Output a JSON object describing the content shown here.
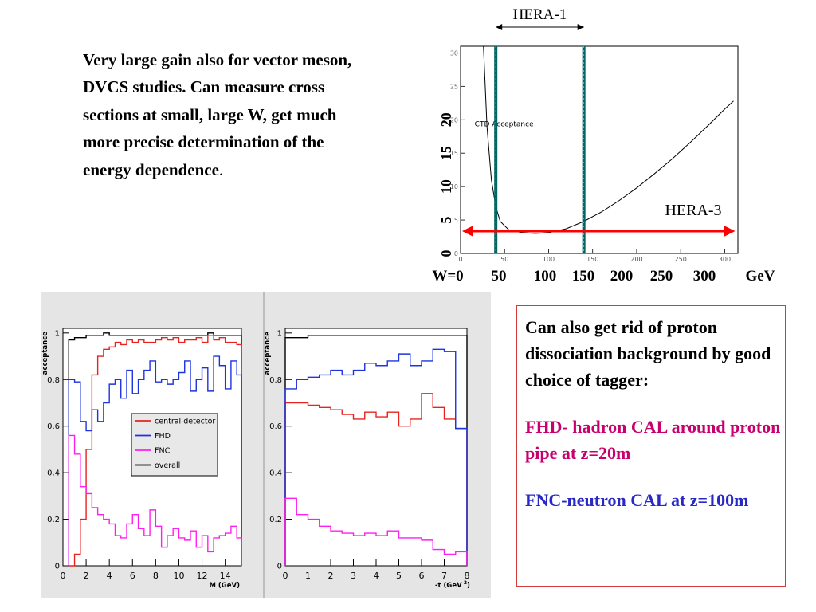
{
  "intro": {
    "main": "Very large gain also for vector meson, DVCS studies.  Can measure cross sections at small, large W, get much more precise determination of the energy dependence",
    "tail": "."
  },
  "side_box": {
    "p1": "Can also get rid of proton dissociation background by good choice of tagger:",
    "p2": "FHD- hadron CAL around proton pipe at z=20m",
    "p3": "FNC-neutron CAL at z=100m"
  },
  "colors": {
    "central_detector": "#e8231f",
    "fhd": "#1c33e0",
    "fnc": "#ff1ef0",
    "overall": "#000000",
    "hera_lines": "#006464",
    "hera3_arrow": "#ff0000",
    "box_border": "#d43b3b",
    "fhd_text": "#c8006e",
    "fnc_text": "#2828c8"
  },
  "chart_data": [
    {
      "type": "line",
      "id": "ctd-acceptance",
      "annotation": "CTD Acceptance",
      "hera1_label": "HERA-1",
      "hera3_label": "HERA-3",
      "ylabel": "",
      "xlim": [
        0,
        315
      ],
      "ylim": [
        0,
        31
      ],
      "x_ticks": [
        0,
        50,
        100,
        150,
        200,
        250,
        300
      ],
      "y_ticks": [
        0,
        5,
        10,
        15,
        20,
        25,
        30
      ],
      "y_tick_big_labels": [
        "0",
        "5",
        "10",
        "15",
        "20"
      ],
      "w_axis_labels": [
        "W=0",
        "50",
        "100",
        "150",
        "200",
        "250",
        "300",
        "GeV"
      ],
      "hera1_range": [
        40,
        140
      ],
      "hera3_range": [
        0,
        310
      ],
      "curve": {
        "x": [
          26,
          30,
          35,
          40,
          45,
          55,
          70,
          85,
          100,
          120,
          140,
          160,
          180,
          200,
          220,
          240,
          260,
          280,
          300,
          310
        ],
        "y": [
          31,
          19,
          11,
          7,
          4.8,
          3.5,
          3.1,
          3.0,
          3.1,
          3.7,
          4.8,
          6.2,
          7.9,
          9.8,
          11.9,
          14.1,
          16.5,
          19.0,
          21.6,
          22.8
        ]
      }
    },
    {
      "type": "line",
      "id": "acceptance-vs-M",
      "xlabel": "M (GeV)",
      "ylabel": "acceptance",
      "xlim": [
        0,
        15.4
      ],
      "ylim": [
        0,
        1.02
      ],
      "x_ticks": [
        0,
        2,
        4,
        6,
        8,
        10,
        12,
        14
      ],
      "y_ticks": [
        0,
        0.2,
        0.4,
        0.6,
        0.8,
        1
      ],
      "legend": [
        "central detector",
        "FHD",
        "FNC",
        "overall"
      ],
      "x_edges": [
        0.5,
        1,
        1.5,
        2,
        2.5,
        3,
        3.5,
        4,
        4.5,
        5,
        5.5,
        6,
        6.5,
        7,
        7.5,
        8,
        8.5,
        9,
        9.5,
        10,
        10.5,
        11,
        11.5,
        12,
        12.5,
        13,
        13.5,
        14,
        14.5,
        15,
        15.4
      ],
      "series": [
        {
          "name": "central detector",
          "color_key": "central_detector",
          "values": [
            0,
            0.05,
            0.2,
            0.5,
            0.82,
            0.9,
            0.93,
            0.94,
            0.96,
            0.95,
            0.97,
            0.96,
            0.97,
            0.96,
            0.96,
            0.97,
            0.98,
            0.97,
            0.98,
            0.96,
            0.97,
            0.97,
            0.98,
            0.96,
            0.99,
            0.97,
            0.98,
            0.96,
            0.96,
            0.95
          ]
        },
        {
          "name": "FHD",
          "color_key": "fhd",
          "values": [
            0.8,
            0.79,
            0.62,
            0.58,
            0.67,
            0.62,
            0.7,
            0.78,
            0.8,
            0.72,
            0.84,
            0.74,
            0.8,
            0.84,
            0.88,
            0.79,
            0.8,
            0.78,
            0.8,
            0.83,
            0.88,
            0.75,
            0.8,
            0.85,
            0.75,
            0.9,
            0.86,
            0.76,
            0.88,
            0.82
          ]
        },
        {
          "name": "FNC",
          "color_key": "fnc",
          "values": [
            0.56,
            0.48,
            0.34,
            0.31,
            0.25,
            0.22,
            0.2,
            0.18,
            0.13,
            0.12,
            0.18,
            0.22,
            0.16,
            0.13,
            0.24,
            0.17,
            0.08,
            0.13,
            0.16,
            0.12,
            0.11,
            0.15,
            0.08,
            0.13,
            0.06,
            0.12,
            0.13,
            0.14,
            0.17,
            0.12
          ]
        },
        {
          "name": "overall",
          "color_key": "overall",
          "values": [
            0.97,
            0.98,
            0.98,
            0.99,
            0.99,
            0.99,
            1.0,
            0.99,
            0.99,
            0.99,
            0.99,
            0.99,
            0.99,
            0.99,
            0.99,
            0.99,
            0.99,
            0.99,
            0.99,
            0.99,
            0.99,
            0.99,
            0.99,
            0.99,
            1.0,
            0.99,
            0.99,
            0.99,
            0.99,
            0.99
          ]
        }
      ]
    },
    {
      "type": "line",
      "id": "acceptance-vs-t",
      "xlabel": "-t (GeV",
      "xlabel_sup": "2",
      "xlabel_close": ")",
      "ylabel": "acceptance",
      "xlim": [
        0,
        8
      ],
      "ylim": [
        0,
        1.02
      ],
      "x_ticks": [
        0,
        1,
        2,
        3,
        4,
        5,
        6,
        7,
        8
      ],
      "y_ticks": [
        0,
        0.2,
        0.4,
        0.6,
        0.8,
        1
      ],
      "x_edges": [
        0,
        0.5,
        1,
        1.5,
        2,
        2.5,
        3,
        3.5,
        4,
        4.5,
        5,
        5.5,
        6,
        6.5,
        7,
        7.5,
        8
      ],
      "series": [
        {
          "name": "central detector",
          "color_key": "central_detector",
          "values": [
            0.7,
            0.7,
            0.69,
            0.68,
            0.67,
            0.65,
            0.63,
            0.66,
            0.64,
            0.66,
            0.6,
            0.63,
            0.74,
            0.68,
            0.63,
            0.59
          ]
        },
        {
          "name": "FHD",
          "color_key": "fhd",
          "values": [
            0.76,
            0.8,
            0.81,
            0.82,
            0.84,
            0.82,
            0.84,
            0.87,
            0.86,
            0.88,
            0.91,
            0.86,
            0.88,
            0.93,
            0.92,
            0.59
          ]
        },
        {
          "name": "FNC",
          "color_key": "fnc",
          "values": [
            0.29,
            0.22,
            0.2,
            0.17,
            0.15,
            0.14,
            0.13,
            0.14,
            0.13,
            0.15,
            0.12,
            0.12,
            0.11,
            0.07,
            0.05,
            0.06
          ]
        },
        {
          "name": "overall",
          "color_key": "overall",
          "values": [
            0.98,
            0.98,
            0.99,
            0.99,
            0.99,
            0.99,
            0.99,
            0.99,
            0.99,
            0.99,
            0.99,
            0.99,
            0.99,
            0.99,
            0.99,
            0.99
          ]
        }
      ]
    }
  ]
}
